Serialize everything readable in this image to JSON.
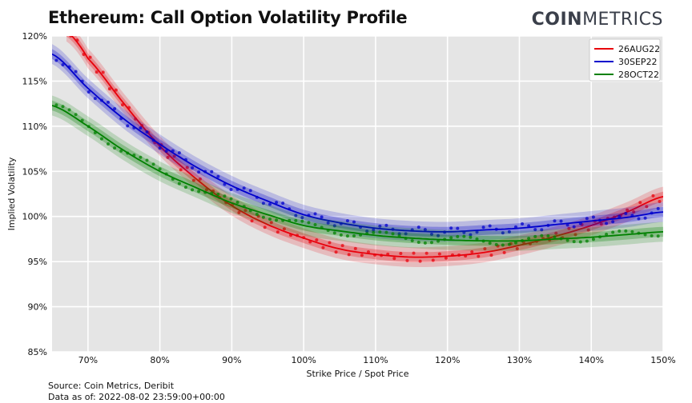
{
  "header": {
    "title": "Ethereum: Call Option Volatility Profile",
    "brand_bold": "COIN",
    "brand_light": "METRICS"
  },
  "footer": {
    "source": "Source: Coin Metrics, Deribit",
    "as_of": "Data as of: 2022-08-02 23:59:00+00:00"
  },
  "chart_data": {
    "type": "line",
    "xlabel": "Strike Price / Spot Price",
    "ylabel": "Implied Volatility",
    "xlim": [
      65,
      150
    ],
    "ylim": [
      85,
      120
    ],
    "xticks": [
      70,
      80,
      90,
      100,
      110,
      120,
      130,
      140,
      150
    ],
    "xtick_labels": [
      "70%",
      "80%",
      "90%",
      "100%",
      "110%",
      "120%",
      "130%",
      "140%",
      "150%"
    ],
    "yticks": [
      85,
      90,
      95,
      100,
      105,
      110,
      115,
      120
    ],
    "ytick_labels": [
      "85%",
      "90%",
      "95%",
      "100%",
      "105%",
      "110%",
      "115%",
      "120%"
    ],
    "grid": true,
    "legend_position": "top-right",
    "colors": {
      "background": "#e5e5e5",
      "grid": "#ffffff"
    },
    "series": [
      {
        "name": "26AUG22",
        "color": "#e8000b",
        "x": [
          67,
          70,
          75,
          80,
          85,
          90,
          95,
          100,
          105,
          110,
          115,
          120,
          125,
          130,
          135,
          140,
          145,
          150
        ],
        "y": [
          120.5,
          117.5,
          112.5,
          107.8,
          104.2,
          101.2,
          99.1,
          97.6,
          96.4,
          95.8,
          95.5,
          95.6,
          96.0,
          96.8,
          97.8,
          99.0,
          100.5,
          102.2
        ]
      },
      {
        "name": "30SEP22",
        "color": "#0000cc",
        "x": [
          65,
          70,
          75,
          80,
          85,
          90,
          95,
          100,
          105,
          110,
          115,
          120,
          125,
          130,
          135,
          140,
          145,
          150
        ],
        "y": [
          118.0,
          114.2,
          110.8,
          108.0,
          105.5,
          103.4,
          101.7,
          100.2,
          99.3,
          98.7,
          98.4,
          98.3,
          98.5,
          98.7,
          99.1,
          99.5,
          99.9,
          100.5
        ]
      },
      {
        "name": "28OCT22",
        "color": "#008000",
        "x": [
          65,
          70,
          75,
          80,
          85,
          90,
          95,
          100,
          105,
          110,
          115,
          120,
          125,
          130,
          135,
          140,
          145,
          150
        ],
        "y": [
          112.3,
          110.0,
          107.3,
          105.0,
          103.2,
          101.5,
          100.2,
          99.0,
          98.4,
          97.9,
          97.6,
          97.4,
          97.3,
          97.3,
          97.5,
          97.7,
          98.0,
          98.3
        ]
      }
    ]
  }
}
